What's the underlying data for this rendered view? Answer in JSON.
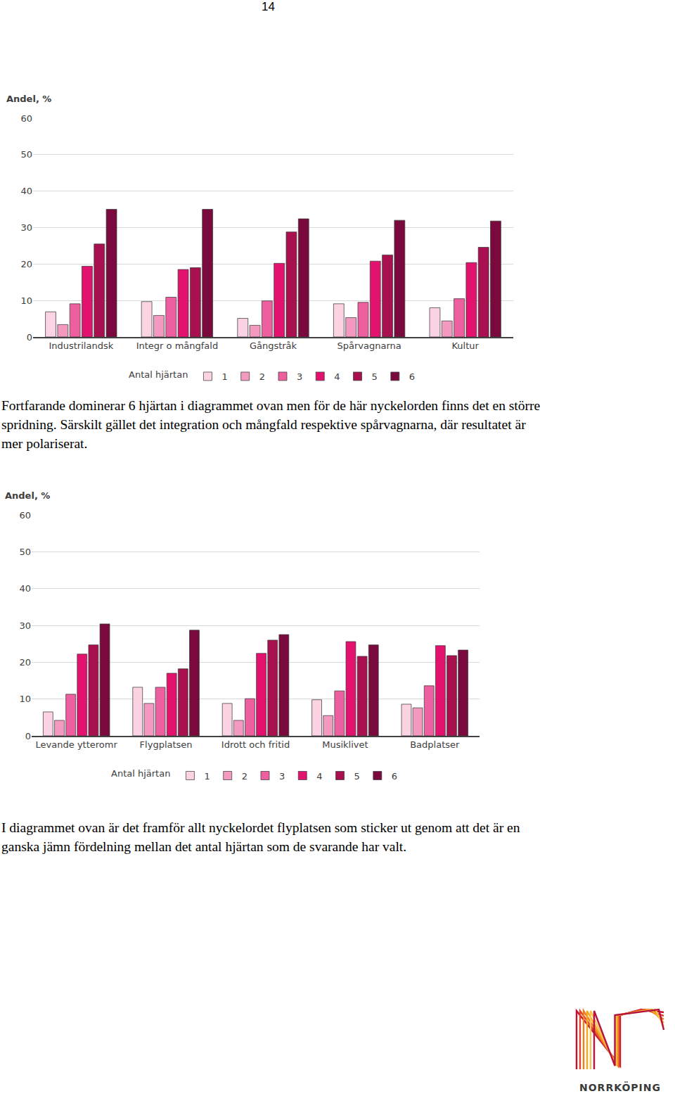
{
  "page_number": "14",
  "chart_data": [
    {
      "type": "bar",
      "y_label": "Andel, %",
      "legend_title": "Antal hjärtan",
      "categories": [
        "Industrilandsk",
        "Integr o mångfald",
        "Gångstråk",
        "Spårvagnarna",
        "Kultur"
      ],
      "series": [
        {
          "name": "1",
          "color": "#fbd3e3",
          "values": [
            6.9,
            9.7,
            5.1,
            9.1,
            8.0
          ]
        },
        {
          "name": "2",
          "color": "#f49ac1",
          "values": [
            3.4,
            5.9,
            3.2,
            5.3,
            4.4
          ]
        },
        {
          "name": "3",
          "color": "#ee5fa0",
          "values": [
            9.1,
            10.9,
            9.9,
            9.5,
            10.5
          ]
        },
        {
          "name": "4",
          "color": "#e3126f",
          "values": [
            19.4,
            18.5,
            20.2,
            20.8,
            20.4
          ]
        },
        {
          "name": "5",
          "color": "#a8104f",
          "values": [
            25.5,
            19.0,
            28.8,
            22.5,
            24.6
          ]
        },
        {
          "name": "6",
          "color": "#7a0a3e",
          "values": [
            35.0,
            35.0,
            32.4,
            32.0,
            31.8
          ]
        }
      ],
      "ylim": [
        0,
        60
      ],
      "yticks": [
        0,
        10,
        20,
        30,
        40,
        50,
        60
      ],
      "grid": true,
      "legend": "bottom"
    },
    {
      "type": "bar",
      "y_label": "Andel, %",
      "legend_title": "Antal hjärtan",
      "categories": [
        "Levande ytteromr",
        "Flygplatsen",
        "Idrott och fritid",
        "Musiklivet",
        "Badplatser"
      ],
      "series": [
        {
          "name": "1",
          "color": "#fbd3e3",
          "values": [
            6.5,
            13.2,
            8.8,
            9.8,
            8.6
          ]
        },
        {
          "name": "2",
          "color": "#f49ac1",
          "values": [
            4.2,
            8.8,
            4.2,
            5.5,
            7.6
          ]
        },
        {
          "name": "3",
          "color": "#ee5fa0",
          "values": [
            11.3,
            13.2,
            10.1,
            12.2,
            13.6
          ]
        },
        {
          "name": "4",
          "color": "#e3126f",
          "values": [
            22.2,
            17.0,
            22.4,
            25.6,
            24.5
          ]
        },
        {
          "name": "5",
          "color": "#a8104f",
          "values": [
            24.7,
            18.2,
            26.0,
            21.6,
            21.8
          ]
        },
        {
          "name": "6",
          "color": "#7a0a3e",
          "values": [
            30.4,
            28.7,
            27.5,
            24.7,
            23.3
          ]
        }
      ],
      "ylim": [
        0,
        60
      ],
      "yticks": [
        0,
        10,
        20,
        30,
        40,
        50,
        60
      ],
      "grid": true,
      "legend": "bottom"
    }
  ],
  "paragraphs": [
    "Fortfarande dominerar 6 hjärtan i diagrammet ovan men för de här nyckelorden finns det en större spridning. Särskilt gället det integration och mångfald respektive spårvagnarna, där resultatet är mer polariserat.",
    "I diagrammet ovan är det framför allt nyckelordet flyplatsen som sticker ut genom att det är en ganska jämn fördelning mellan det antal hjärtan som de svarande har valt."
  ],
  "logo": {
    "label": "NORRKÖPING"
  }
}
